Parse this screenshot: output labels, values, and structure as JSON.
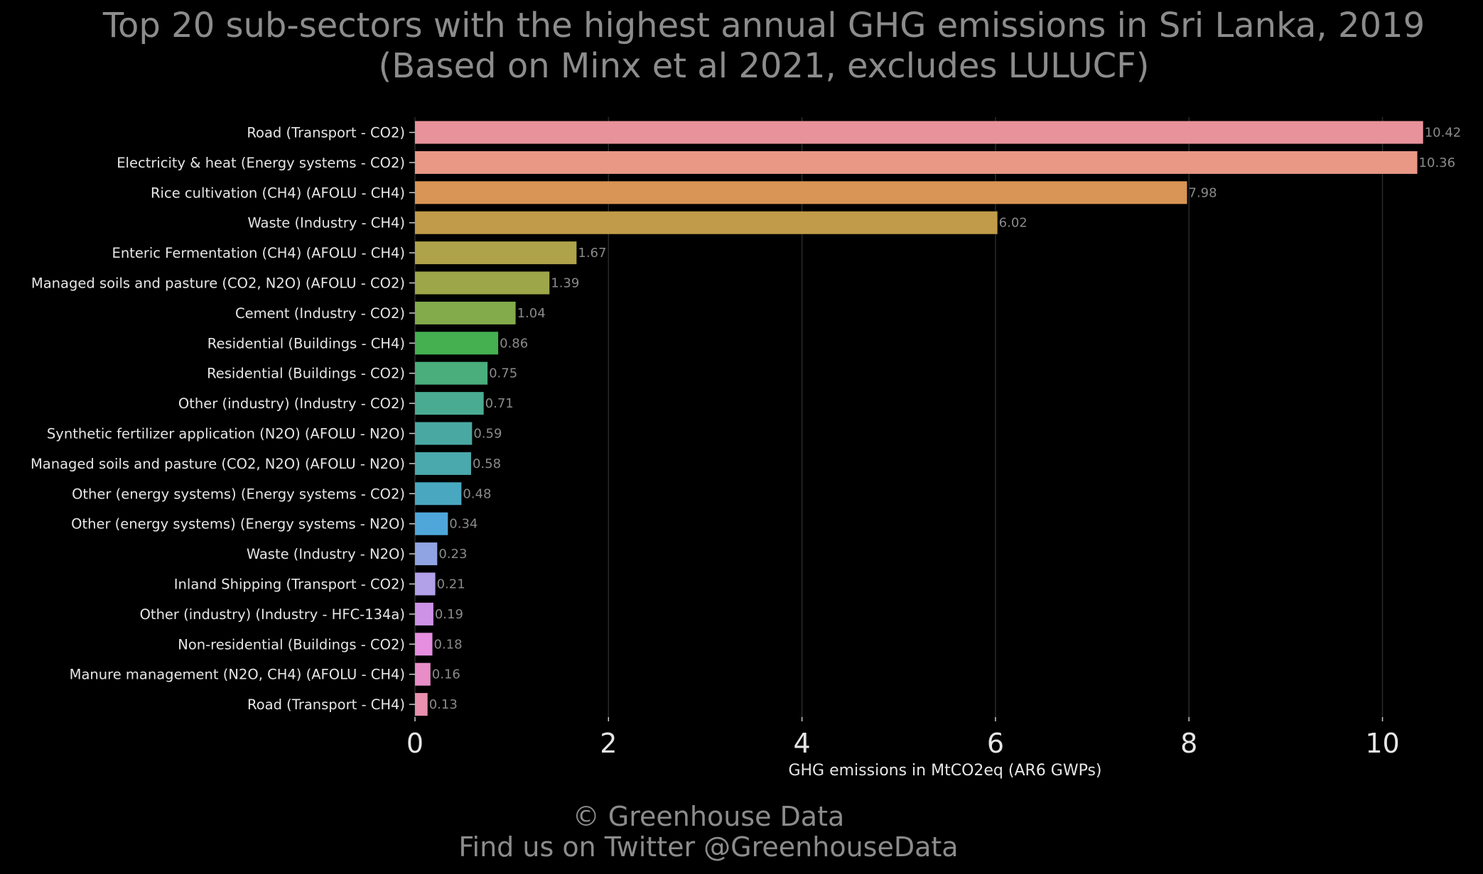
{
  "chart_data": {
    "type": "bar",
    "orientation": "horizontal",
    "title": "Top 20 sub-sectors with the highest annual GHG emissions in Sri Lanka, 2019",
    "subtitle": "(Based on Minx et al 2021, excludes LULUCF)",
    "xlabel": "GHG emissions in MtCO2eq (AR6 GWPs)",
    "ylabel": "",
    "xlim": [
      0,
      10.6
    ],
    "xticks": [
      0,
      2,
      4,
      6,
      8,
      10
    ],
    "xtick_labels": [
      "0",
      "2",
      "4",
      "6",
      "8",
      "10"
    ],
    "grid": "vertical",
    "categories": [
      "Road (Transport - CO2)",
      "Electricity & heat (Energy systems - CO2)",
      "Rice cultivation (CH4) (AFOLU - CH4)",
      "Waste (Industry - CH4)",
      "Enteric Fermentation (CH4) (AFOLU - CH4)",
      "Managed soils and pasture (CO2, N2O) (AFOLU - CO2)",
      "Cement (Industry - CO2)",
      "Residential (Buildings - CH4)",
      "Residential (Buildings - CO2)",
      "Other (industry) (Industry - CO2)",
      "Synthetic fertilizer application (N2O) (AFOLU - N2O)",
      "Managed soils and pasture (CO2, N2O) (AFOLU - N2O)",
      "Other (energy systems) (Energy systems - CO2)",
      "Other (energy systems) (Energy systems - N2O)",
      "Waste (Industry - N2O)",
      "Inland Shipping (Transport - CO2)",
      "Other (industry) (Industry - HFC-134a)",
      "Non-residential (Buildings - CO2)",
      "Manure management (N2O, CH4) (AFOLU - CH4)",
      "Road (Transport - CH4)"
    ],
    "values": [
      10.42,
      10.36,
      7.98,
      6.02,
      1.67,
      1.39,
      1.04,
      0.86,
      0.75,
      0.71,
      0.59,
      0.58,
      0.48,
      0.34,
      0.23,
      0.21,
      0.19,
      0.18,
      0.16,
      0.13
    ],
    "value_labels": [
      "10.42",
      "10.36",
      "7.98",
      "6.02",
      "1.67",
      "1.39",
      "1.04",
      "0.86",
      "0.75",
      "0.71",
      "0.59",
      "0.58",
      "0.48",
      "0.34",
      "0.23",
      "0.21",
      "0.19",
      "0.18",
      "0.16",
      "0.13"
    ],
    "colors": [
      "#e8929b",
      "#e89884",
      "#d89555",
      "#c19b49",
      "#aea24a",
      "#9ea64a",
      "#83ab4b",
      "#44b050",
      "#4aad7c",
      "#49ab92",
      "#4aa8a2",
      "#4aa9ad",
      "#49a8bf",
      "#4fa7d9",
      "#90a4e3",
      "#b2a0e8",
      "#cd92e6",
      "#e68ee0",
      "#e88dc7",
      "#e890ad"
    ]
  },
  "footer": {
    "line1": "© Greenhouse Data",
    "line2": "Find us on Twitter @GreenhouseData"
  }
}
